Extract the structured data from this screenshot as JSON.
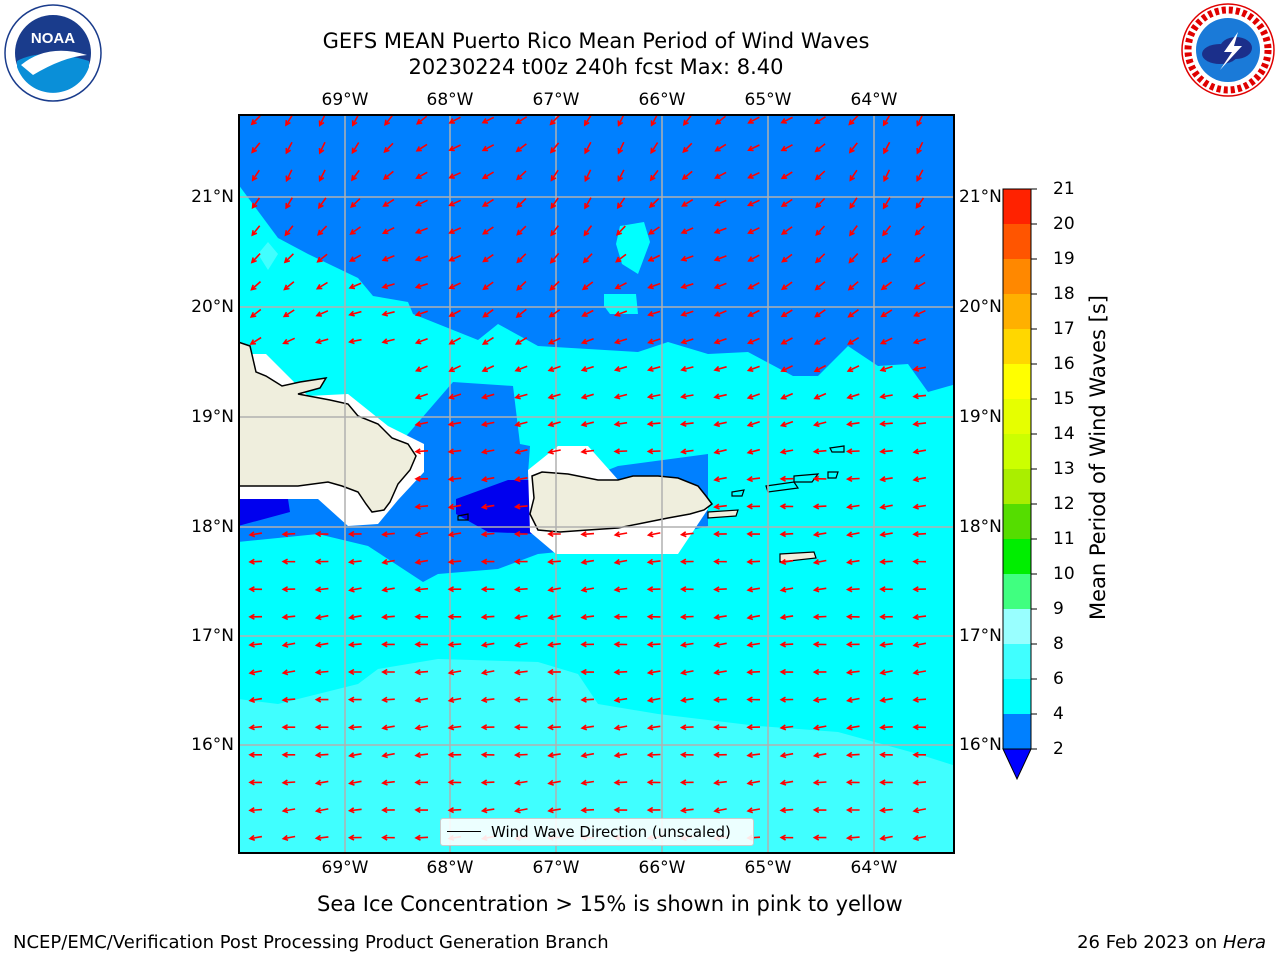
{
  "title": {
    "line1": "GEFS MEAN Puerto Rico Mean Period of Wind Waves",
    "line2": "20230224 t00z 240h fcst   Max: 8.40"
  },
  "logos": {
    "noaa": {
      "text": "NOAA",
      "ring": "NATIONAL OCEANIC AND ATMOSPHERIC ADMINISTRATION · U.S. DEPARTMENT OF COMMERCE"
    },
    "nws": {
      "ring": "NATIONAL WEATHER SERVICE"
    }
  },
  "map": {
    "lon_ticks": [
      "69°W",
      "68°W",
      "67°W",
      "66°W",
      "65°W",
      "64°W"
    ],
    "lat_ticks": [
      "21°N",
      "20°N",
      "19°N",
      "18°N",
      "17°N",
      "16°N"
    ],
    "legend": "Wind Wave Direction (unscaled)",
    "arrow_color": "#ff0000",
    "land_color": "#efeedd",
    "grid_color": "#b0b0b0"
  },
  "colorbar": {
    "label": "Mean Period of Wind Waves [s]",
    "ticks": [
      "2",
      "4",
      "6",
      "8",
      "9",
      "10",
      "11",
      "12",
      "13",
      "14",
      "15",
      "16",
      "17",
      "18",
      "19",
      "20",
      "21"
    ],
    "colors": [
      "#0080ff",
      "#00ffff",
      "#40ffff",
      "#99ffff",
      "#40ff80",
      "#00ee00",
      "#55dd00",
      "#aaee00",
      "#ccff00",
      "#e6ff00",
      "#ffff00",
      "#ffd700",
      "#ffb000",
      "#ff8800",
      "#ff5500",
      "#ff2200"
    ],
    "extend_color": "#0000ff"
  },
  "subtitle": "Sea Ice Concentration > 15% is shown in pink to yellow",
  "footer": {
    "left": "NCEP/EMC/Verification Post Processing Product Generation Branch",
    "date": "26 Feb 2023 on ",
    "machine": "Hera"
  }
}
